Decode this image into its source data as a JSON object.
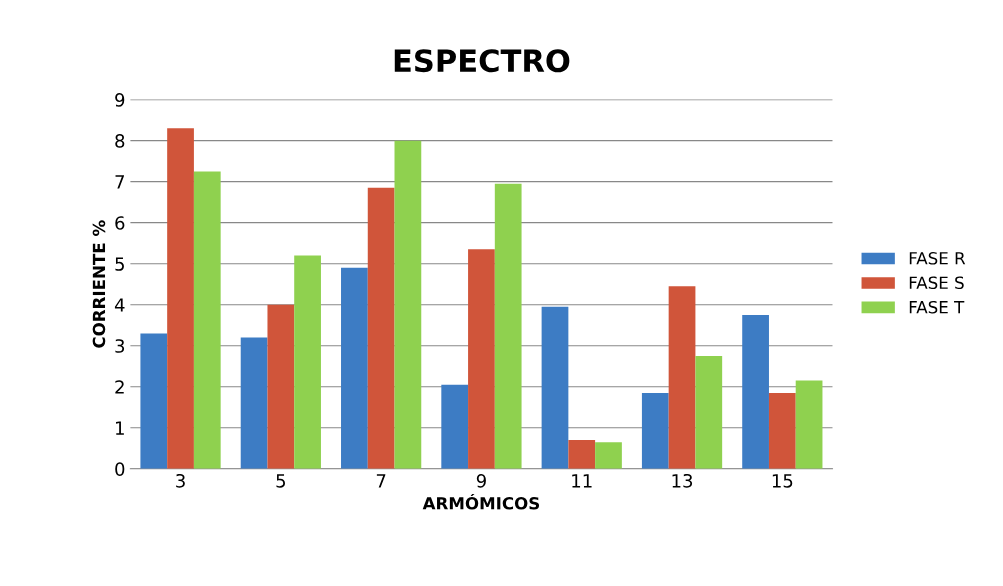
{
  "chart_data": {
    "type": "bar",
    "title": "ESPECTRO",
    "xlabel": "ARMÓMICOS",
    "ylabel": "CORRIENTE %",
    "categories": [
      "3",
      "5",
      "7",
      "9",
      "11",
      "13",
      "15"
    ],
    "series": [
      {
        "name": "FASE R",
        "color": "#3d7cc4",
        "values": [
          3.3,
          3.2,
          4.9,
          2.05,
          3.95,
          1.85,
          3.75
        ]
      },
      {
        "name": "FASE S",
        "color": "#d0553a",
        "values": [
          8.3,
          4.0,
          6.85,
          5.35,
          0.7,
          4.45,
          1.85
        ]
      },
      {
        "name": "FASE T",
        "color": "#8fd14f",
        "values": [
          7.25,
          5.2,
          8.0,
          6.95,
          0.65,
          2.75,
          2.15
        ]
      }
    ],
    "ylim": [
      0,
      9
    ],
    "yticks": [
      0,
      1,
      2,
      3,
      4,
      5,
      6,
      7,
      8,
      9
    ],
    "grid": "y",
    "legend": "right"
  }
}
